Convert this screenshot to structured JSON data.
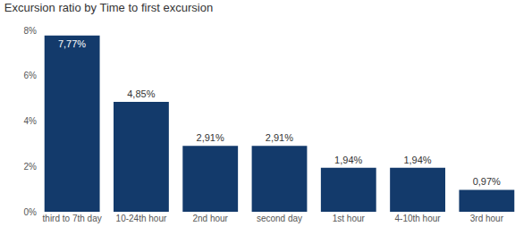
{
  "chart_data": {
    "type": "bar",
    "title": "Excursion ratio by Time to first excursion",
    "categories": [
      "third to 7th day",
      "10-24th hour",
      "2nd hour",
      "second day",
      "1st hour",
      "4-10th hour",
      "3rd hour"
    ],
    "values": [
      7.77,
      4.85,
      2.91,
      2.91,
      1.94,
      1.94,
      0.97
    ],
    "value_labels": [
      "7,77%",
      "4,85%",
      "2,91%",
      "2,91%",
      "1,94%",
      "1,94%",
      "0,97%"
    ],
    "color": "#133a6b",
    "ylim": [
      0,
      8
    ],
    "yticks": [
      {
        "value": 0,
        "label": "0%"
      },
      {
        "value": 2,
        "label": "2%"
      },
      {
        "value": 4,
        "label": "4%"
      },
      {
        "value": 6,
        "label": "6%"
      },
      {
        "value": 8,
        "label": "8%"
      }
    ],
    "grid": false,
    "data_labels": true
  }
}
